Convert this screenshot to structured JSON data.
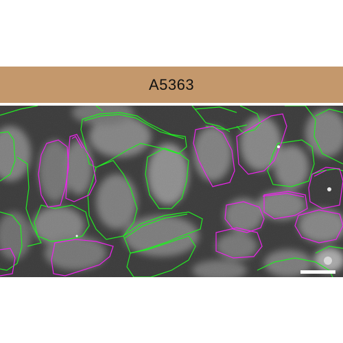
{
  "header": {
    "title": "A5363",
    "background": "#c4986c"
  },
  "micrograph": {
    "outline_colors": {
      "green": "#22ee22",
      "magenta": "#ee22ee"
    },
    "scale_bar_color": "#ffffff"
  }
}
